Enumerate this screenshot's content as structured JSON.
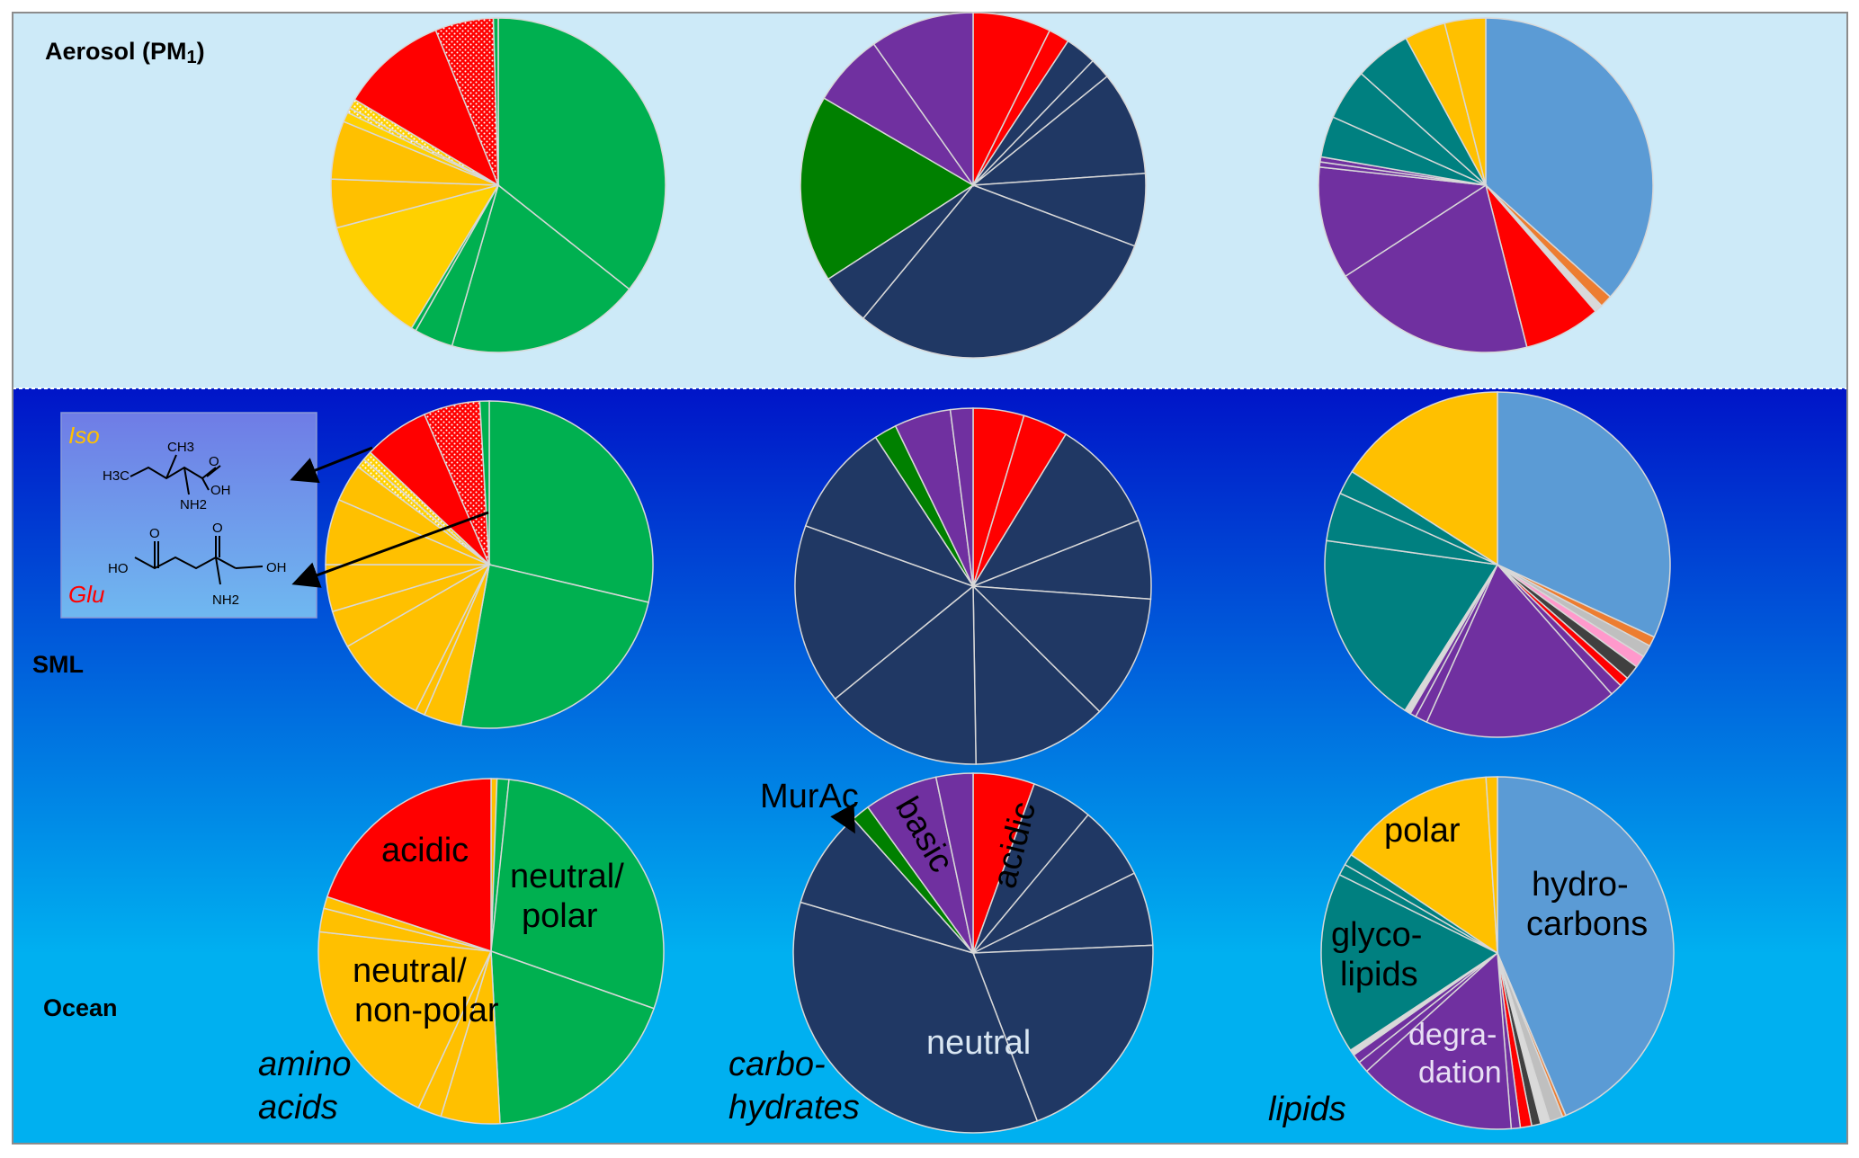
{
  "rows": [
    {
      "id": "aerosol",
      "label_main": "Aerosol (PM",
      "label_sub": "1",
      "label_close": ")"
    },
    {
      "id": "sml",
      "label_main": "SML"
    },
    {
      "id": "ocean",
      "label_main": "Ocean"
    }
  ],
  "column_labels": [
    {
      "lines": [
        "amino",
        "acids"
      ]
    },
    {
      "lines": [
        "carbo-",
        "hydrates"
      ]
    },
    {
      "lines": [
        "lipids"
      ]
    }
  ],
  "category_labels": {
    "amino": [
      {
        "lines": [
          "acidic"
        ]
      },
      {
        "lines": [
          "neutral/",
          "polar"
        ]
      },
      {
        "lines": [
          "neutral/",
          "non-polar"
        ]
      }
    ],
    "carbo": [
      {
        "lines": [
          "acidic"
        ]
      },
      {
        "lines": [
          "basic"
        ]
      },
      {
        "lines": [
          "neutral"
        ]
      },
      {
        "lines": [
          "MurAc"
        ]
      }
    ],
    "lipids": [
      {
        "lines": [
          "hydro-",
          "carbons"
        ]
      },
      {
        "lines": [
          "polar"
        ]
      },
      {
        "lines": [
          "glyco-",
          "lipids"
        ]
      },
      {
        "lines": [
          "degra-",
          "dation"
        ]
      }
    ]
  },
  "inset": {
    "iso_label": "Iso",
    "glu_label": "Glu",
    "iso_atoms": {
      "ch3": "CH3",
      "h3c": "H3C",
      "oh": "OH",
      "nh2": "NH2",
      "o": "O"
    },
    "glu_atoms": {
      "ho": "HO",
      "oh": "OH",
      "nh2": "NH2",
      "o1": "O",
      "o2": "O"
    }
  },
  "colors": {
    "acidic": "#ff0000",
    "neutral_polar": "#00b050",
    "neutral_nonpolar": "#ffc000",
    "neutral_nonpolar_light": "#ffd000",
    "carb_neutral": "#203864",
    "carb_basic": "#7030a0",
    "murac": "#008000",
    "hydrocarbons": "#5b9bd5",
    "lipid_polar": "#ffc000",
    "glycolipids": "#008080",
    "degradation": "#7030a0",
    "aerosol_bg": "#cdeaf8",
    "water_top": "#0015c8",
    "water_bottom": "#00b0f0"
  },
  "chart_data": [
    {
      "type": "pie",
      "row": "Aerosol (PM1)",
      "column": "amino acids",
      "values": [
        38,
        20,
        4,
        0.5,
        13,
        5,
        6,
        1,
        0.5,
        1,
        11,
        6,
        0.5
      ],
      "colors": [
        "#00b050",
        "#00b050",
        "#00b050",
        "#00b050",
        "#ffd000",
        "#ffc000",
        "#ffc000",
        "#ffd000",
        "#ffe070",
        "#ffe070",
        "#ff0000",
        "#ff0000",
        "#00b050"
      ],
      "patterns": [
        "",
        "",
        "",
        "",
        "",
        "",
        "",
        "",
        "dots-y",
        "dots-y",
        "",
        "dots-r",
        ""
      ]
    },
    {
      "type": "pie",
      "row": "Aerosol (PM1)",
      "column": "carbohydrates",
      "values": [
        7.5,
        2,
        3,
        2,
        10,
        7,
        31,
        5,
        18,
        7,
        10
      ],
      "colors": [
        "#ff0000",
        "#ff0000",
        "#203864",
        "#203864",
        "#203864",
        "#203864",
        "#203864",
        "#203864",
        "#008000",
        "#7030a0",
        "#7030a0"
      ]
    },
    {
      "type": "pie",
      "row": "Aerosol (PM1)",
      "column": "lipids",
      "values": [
        37,
        1.2,
        0.8,
        7.5,
        20,
        11,
        0.5,
        0.5,
        4,
        5,
        5.5,
        4,
        4
      ],
      "colors": [
        "#5b9bd5",
        "#ed7d31",
        "#d9d9d9",
        "#ff0000",
        "#7030a0",
        "#7030a0",
        "#7030a0",
        "#7030a0",
        "#008080",
        "#008080",
        "#008080",
        "#ffc000",
        "#ffc000"
      ]
    },
    {
      "type": "pie",
      "row": "SML",
      "column": "amino acids",
      "values": [
        31,
        26,
        4,
        1,
        10,
        4,
        5,
        7,
        4,
        1,
        1,
        7,
        6,
        1
      ],
      "colors": [
        "#00b050",
        "#00b050",
        "#ffc000",
        "#ffc000",
        "#ffc000",
        "#ffc000",
        "#ffc000",
        "#ffc000",
        "#ffc000",
        "#ffe070",
        "#ffe070",
        "#ff0000",
        "#ff0000",
        "#00b050"
      ],
      "patterns": [
        "",
        "",
        "",
        "",
        "",
        "",
        "",
        "",
        "",
        "dots-y",
        "dots-y",
        "",
        "dots-r",
        ""
      ]
    },
    {
      "type": "pie",
      "row": "SML",
      "column": "carbohydrates",
      "values": [
        4.5,
        4,
        10,
        7,
        11,
        12,
        14,
        16,
        10,
        2,
        5,
        2
      ],
      "colors": [
        "#ff0000",
        "#ff0000",
        "#203864",
        "#203864",
        "#203864",
        "#203864",
        "#203864",
        "#203864",
        "#203864",
        "#008000",
        "#7030a0",
        "#7030a0"
      ]
    },
    {
      "type": "pie",
      "row": "SML",
      "column": "lipids",
      "values": [
        28,
        0.8,
        1,
        1,
        1.2,
        0.8,
        1,
        16,
        1,
        0.5,
        0.5,
        16,
        4,
        2,
        14
      ],
      "colors": [
        "#5b9bd5",
        "#ed7d31",
        "#bfbfbf",
        "#ff99cc",
        "#404040",
        "#ff0000",
        "#7030a0",
        "#7030a0",
        "#7030a0",
        "#7030a0",
        "#d9d9d9",
        "#008080",
        "#008080",
        "#008080",
        "#ffc000"
      ],
      "patterns": [
        "",
        "",
        "",
        "",
        "",
        "",
        "",
        "",
        "",
        "",
        "",
        "",
        "",
        "",
        ""
      ]
    },
    {
      "type": "pie",
      "row": "Ocean",
      "column": "amino acids",
      "values": [
        0.5,
        1,
        26,
        17,
        5,
        2,
        18,
        2,
        1,
        18
      ],
      "colors": [
        "#ffc000",
        "#00b050",
        "#00b050",
        "#00b050",
        "#ffc000",
        "#ffc000",
        "#ffc000",
        "#ffc000",
        "#ffc000",
        "#ff0000"
      ],
      "labels": [
        "",
        "",
        "neutral/polar",
        "",
        "",
        "",
        "neutral/non-polar",
        "",
        "",
        "acidic"
      ]
    },
    {
      "type": "pie",
      "row": "Ocean",
      "column": "carbohydrates",
      "values": [
        5,
        5,
        6,
        6,
        18,
        32,
        8,
        1.5,
        6,
        3
      ],
      "colors": [
        "#ff0000",
        "#203864",
        "#203864",
        "#203864",
        "#203864",
        "#203864",
        "#203864",
        "#008000",
        "#7030a0",
        "#7030a0"
      ],
      "labels": [
        "acidic",
        "",
        "",
        "",
        "",
        "neutral",
        "",
        "MurAc",
        "basic",
        ""
      ]
    },
    {
      "type": "pie",
      "row": "Ocean",
      "column": "lipids",
      "values": [
        42,
        0.3,
        1.2,
        0.8,
        0.8,
        1,
        0.8,
        14,
        1,
        0.8,
        0.5,
        16,
        1,
        1,
        14,
        1
      ],
      "colors": [
        "#5b9bd5",
        "#ed7d31",
        "#bfbfbf",
        "#d9d9d9",
        "#404040",
        "#ff0000",
        "#7030a0",
        "#7030a0",
        "#7030a0",
        "#7030a0",
        "#d9d9d9",
        "#008080",
        "#008080",
        "#008080",
        "#ffc000",
        "#ffc000"
      ],
      "labels": [
        "hydrocarbons",
        "",
        "",
        "",
        "",
        "",
        "",
        "degradation",
        "",
        "",
        "",
        "glycolipids",
        "",
        "",
        "polar",
        ""
      ]
    }
  ]
}
